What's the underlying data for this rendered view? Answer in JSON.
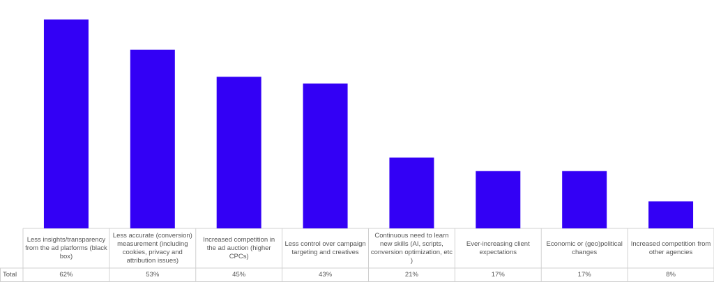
{
  "chart_data": {
    "type": "bar",
    "categories": [
      "Less insights/transparency from the ad platforms (black box)",
      "Less accurate (conversion) measurement (including cookies, privacy and attribution issues)",
      "Increased competition in the ad auction (higher CPCs)",
      "Less control over campaign targeting and creatives",
      "Continuous need to learn new skills (AI, scripts, conversion optimization, etc )",
      "Ever-increasing client expectations",
      "Economic or (geo)political changes",
      "Increased competition from other agencies"
    ],
    "values": [
      62,
      53,
      45,
      43,
      21,
      17,
      17,
      8
    ],
    "value_labels": [
      "62%",
      "53%",
      "45%",
      "43%",
      "21%",
      "17%",
      "17%",
      "8%"
    ],
    "row_label": "Total",
    "color": "#3300f5"
  }
}
